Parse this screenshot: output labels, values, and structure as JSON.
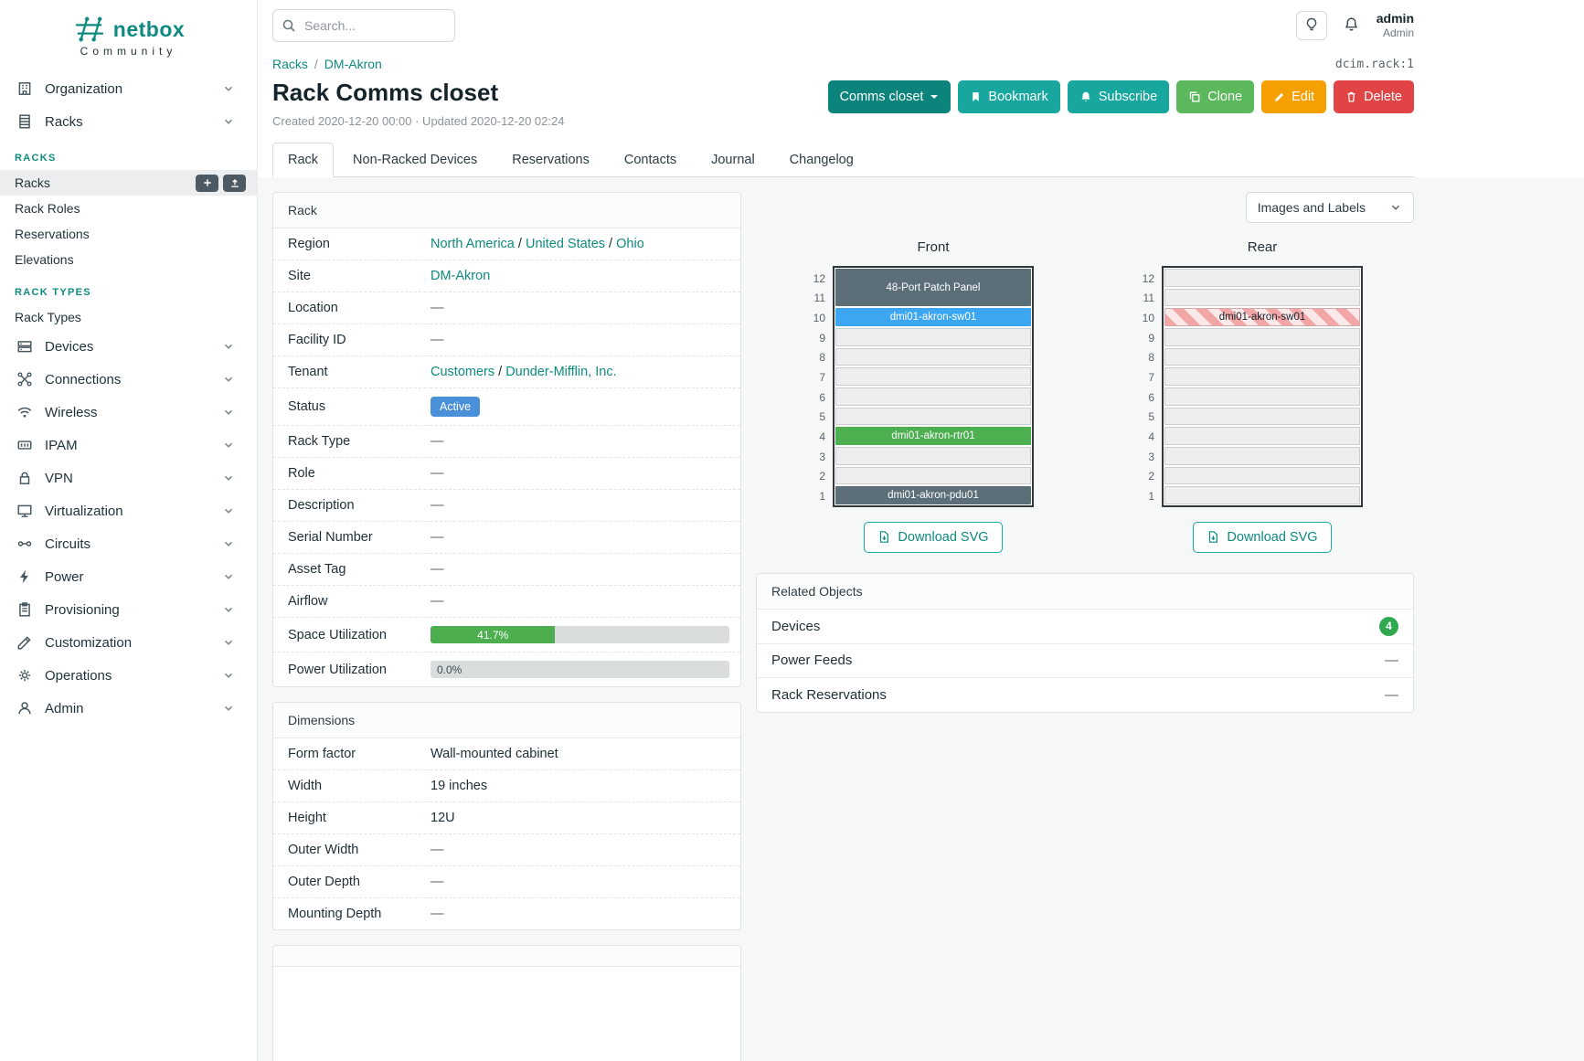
{
  "brand": {
    "name": "netbox",
    "community": "Community"
  },
  "topbar": {
    "search_placeholder": "Search...",
    "user": {
      "name": "admin",
      "role": "Admin"
    }
  },
  "sidebar": {
    "entries": [
      {
        "type": "item",
        "label": "Organization",
        "icon": "building"
      },
      {
        "type": "item",
        "label": "Racks",
        "icon": "rack"
      },
      {
        "type": "heading",
        "label": "Racks"
      },
      {
        "type": "link",
        "label": "Racks",
        "active": true,
        "actions": [
          {
            "icon": "plus"
          },
          {
            "icon": "import"
          }
        ]
      },
      {
        "type": "link",
        "label": "Rack Roles"
      },
      {
        "type": "link",
        "label": "Reservations"
      },
      {
        "type": "link",
        "label": "Elevations"
      },
      {
        "type": "heading",
        "label": "Rack Types"
      },
      {
        "type": "link",
        "label": "Rack Types"
      },
      {
        "type": "item",
        "label": "Devices",
        "icon": "devices"
      },
      {
        "type": "item",
        "label": "Connections",
        "icon": "connections"
      },
      {
        "type": "item",
        "label": "Wireless",
        "icon": "wifi"
      },
      {
        "type": "item",
        "label": "IPAM",
        "icon": "counter"
      },
      {
        "type": "item",
        "label": "VPN",
        "icon": "lock"
      },
      {
        "type": "item",
        "label": "Virtualization",
        "icon": "monitor"
      },
      {
        "type": "item",
        "label": "Circuits",
        "icon": "circuit"
      },
      {
        "type": "item",
        "label": "Power",
        "icon": "bolt"
      },
      {
        "type": "item",
        "label": "Provisioning",
        "icon": "clipboard"
      },
      {
        "type": "item",
        "label": "Customization",
        "icon": "pencil-ruler"
      },
      {
        "type": "item",
        "label": "Operations",
        "icon": "gears"
      },
      {
        "type": "item",
        "label": "Admin",
        "icon": "account"
      }
    ]
  },
  "header": {
    "breadcrumb": [
      {
        "label": "Racks"
      },
      {
        "label": "DM-Akron"
      }
    ],
    "object_id": "dcim.rack:1",
    "title": "Rack Comms closet",
    "meta": "Created 2020-12-20 00:00 · Updated 2020-12-20 02:24",
    "actions": [
      {
        "label": "Comms closet",
        "caret": true,
        "color": "#0c837b"
      },
      {
        "label": "Bookmark",
        "icon": "bookmark",
        "color": "#17a79f"
      },
      {
        "label": "Subscribe",
        "icon": "bell",
        "color": "#17a79f"
      },
      {
        "label": "Clone",
        "icon": "clone",
        "color": "#5cb85c"
      },
      {
        "label": "Edit",
        "icon": "pencil",
        "color": "#f59f00"
      },
      {
        "label": "Delete",
        "icon": "trash",
        "color": "#e04444"
      }
    ],
    "tabs": [
      {
        "label": "Rack",
        "active": true
      },
      {
        "label": "Non-Racked Devices"
      },
      {
        "label": "Reservations"
      },
      {
        "label": "Contacts"
      },
      {
        "label": "Journal"
      },
      {
        "label": "Changelog"
      }
    ]
  },
  "rack_card": {
    "title": "Rack",
    "rows": [
      {
        "label": "Region",
        "type": "links",
        "links": [
          "North America",
          "United States",
          "Ohio"
        ]
      },
      {
        "label": "Site",
        "type": "links",
        "links": [
          "DM-Akron"
        ]
      },
      {
        "label": "Location",
        "type": "dash"
      },
      {
        "label": "Facility ID",
        "type": "dash"
      },
      {
        "label": "Tenant",
        "type": "links",
        "links": [
          "Customers",
          "Dunder-Mifflin, Inc."
        ]
      },
      {
        "label": "Status",
        "type": "badge",
        "text": "Active",
        "color": "#4a90d9"
      },
      {
        "label": "Rack Type",
        "type": "dash"
      },
      {
        "label": "Role",
        "type": "dash"
      },
      {
        "label": "Description",
        "type": "dash"
      },
      {
        "label": "Serial Number",
        "type": "dash"
      },
      {
        "label": "Asset Tag",
        "type": "dash"
      },
      {
        "label": "Airflow",
        "type": "dash"
      },
      {
        "label": "Space Utilization",
        "type": "progress",
        "percent": 41.7,
        "text": "41.7%"
      },
      {
        "label": "Power Utilization",
        "type": "progress",
        "percent": 0,
        "text": "0.0%"
      }
    ]
  },
  "dimensions_card": {
    "title": "Dimensions",
    "rows": [
      {
        "label": "Form factor",
        "type": "text",
        "text": "Wall-mounted cabinet"
      },
      {
        "label": "Width",
        "type": "text",
        "text": "19 inches"
      },
      {
        "label": "Height",
        "type": "text",
        "text": "12U"
      },
      {
        "label": "Outer Width",
        "type": "dash"
      },
      {
        "label": "Outer Depth",
        "type": "dash"
      },
      {
        "label": "Mounting Depth",
        "type": "dash"
      }
    ]
  },
  "elevations": {
    "view_select": "Images and Labels",
    "download_label": "Download SVG",
    "units": 12,
    "views": [
      {
        "title": "Front",
        "devices": [
          {
            "top_unit": 12,
            "span": 2,
            "label": "48-Port Patch Panel",
            "style": "dark"
          },
          {
            "top_unit": 10,
            "span": 1,
            "label": "dmi01-akron-sw01",
            "style": "blue"
          },
          {
            "top_unit": 4,
            "span": 1,
            "label": "dmi01-akron-rtr01",
            "style": "green"
          },
          {
            "top_unit": 1,
            "span": 1,
            "label": "dmi01-akron-pdu01",
            "style": "dark"
          }
        ]
      },
      {
        "title": "Rear",
        "devices": [
          {
            "top_unit": 10,
            "span": 1,
            "label": "dmi01-akron-sw01",
            "style": "striped"
          }
        ]
      }
    ]
  },
  "related": {
    "title": "Related Objects",
    "rows": [
      {
        "label": "Devices",
        "badge": "4"
      },
      {
        "label": "Power Feeds"
      },
      {
        "label": "Rack Reservations"
      }
    ]
  },
  "misc": {
    "dash": "—"
  },
  "colors": {
    "teal_link": "#0e8a80",
    "teal_button": "#17a79f",
    "dark_teal_button": "#0c837b",
    "status_blue": "#4a90d9",
    "progress_green": "#4cae4f",
    "count_badge_green": "#2fa84f",
    "device_dark": "#5c6e78",
    "device_blue": "#3da6f2",
    "device_green": "#4caf50"
  }
}
